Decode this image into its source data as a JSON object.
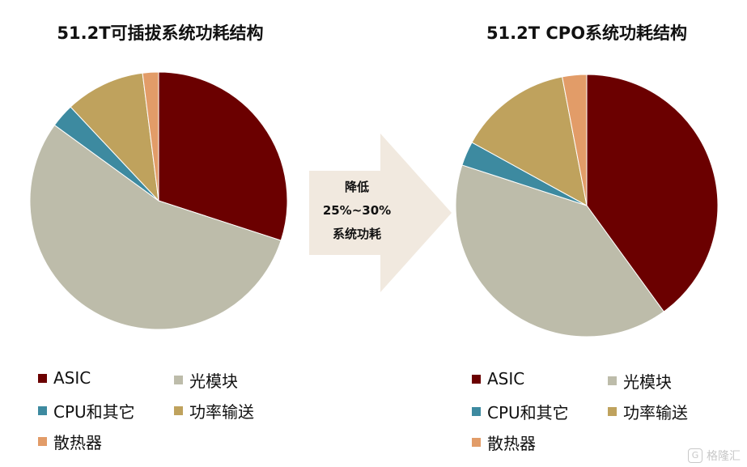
{
  "chart_data": [
    {
      "type": "pie",
      "title": "51.2T可插拔系统功耗结构",
      "unit": "%",
      "slices": [
        {
          "label": "ASIC",
          "value": 30,
          "color": "#6b0000"
        },
        {
          "label": "光模块",
          "value": 55,
          "color": "#bdbcaa"
        },
        {
          "label": "CPU和其它",
          "value": 3,
          "color": "#3d8aa0"
        },
        {
          "label": "功率输送",
          "value": 10,
          "color": "#bfa25d"
        },
        {
          "label": "散热器",
          "value": 2,
          "color": "#e29c68"
        }
      ],
      "legend_placement": "bottom"
    },
    {
      "type": "pie",
      "title": "51.2T CPO系统功耗结构",
      "unit": "%",
      "slices": [
        {
          "label": "ASIC",
          "value": 40,
          "color": "#6b0000"
        },
        {
          "label": "光模块",
          "value": 40,
          "color": "#bdbcaa"
        },
        {
          "label": "CPU和其它",
          "value": 3,
          "color": "#3d8aa0"
        },
        {
          "label": "功率输送",
          "value": 14,
          "color": "#bfa25d"
        },
        {
          "label": "散热器",
          "value": 3,
          "color": "#e29c68"
        }
      ],
      "legend_placement": "bottom"
    }
  ],
  "arrow": {
    "lines": [
      "降低",
      "25%~30%",
      "系统功耗"
    ],
    "color": "#f1e9df"
  },
  "watermark": {
    "logo": "G",
    "text": "格隆汇"
  }
}
